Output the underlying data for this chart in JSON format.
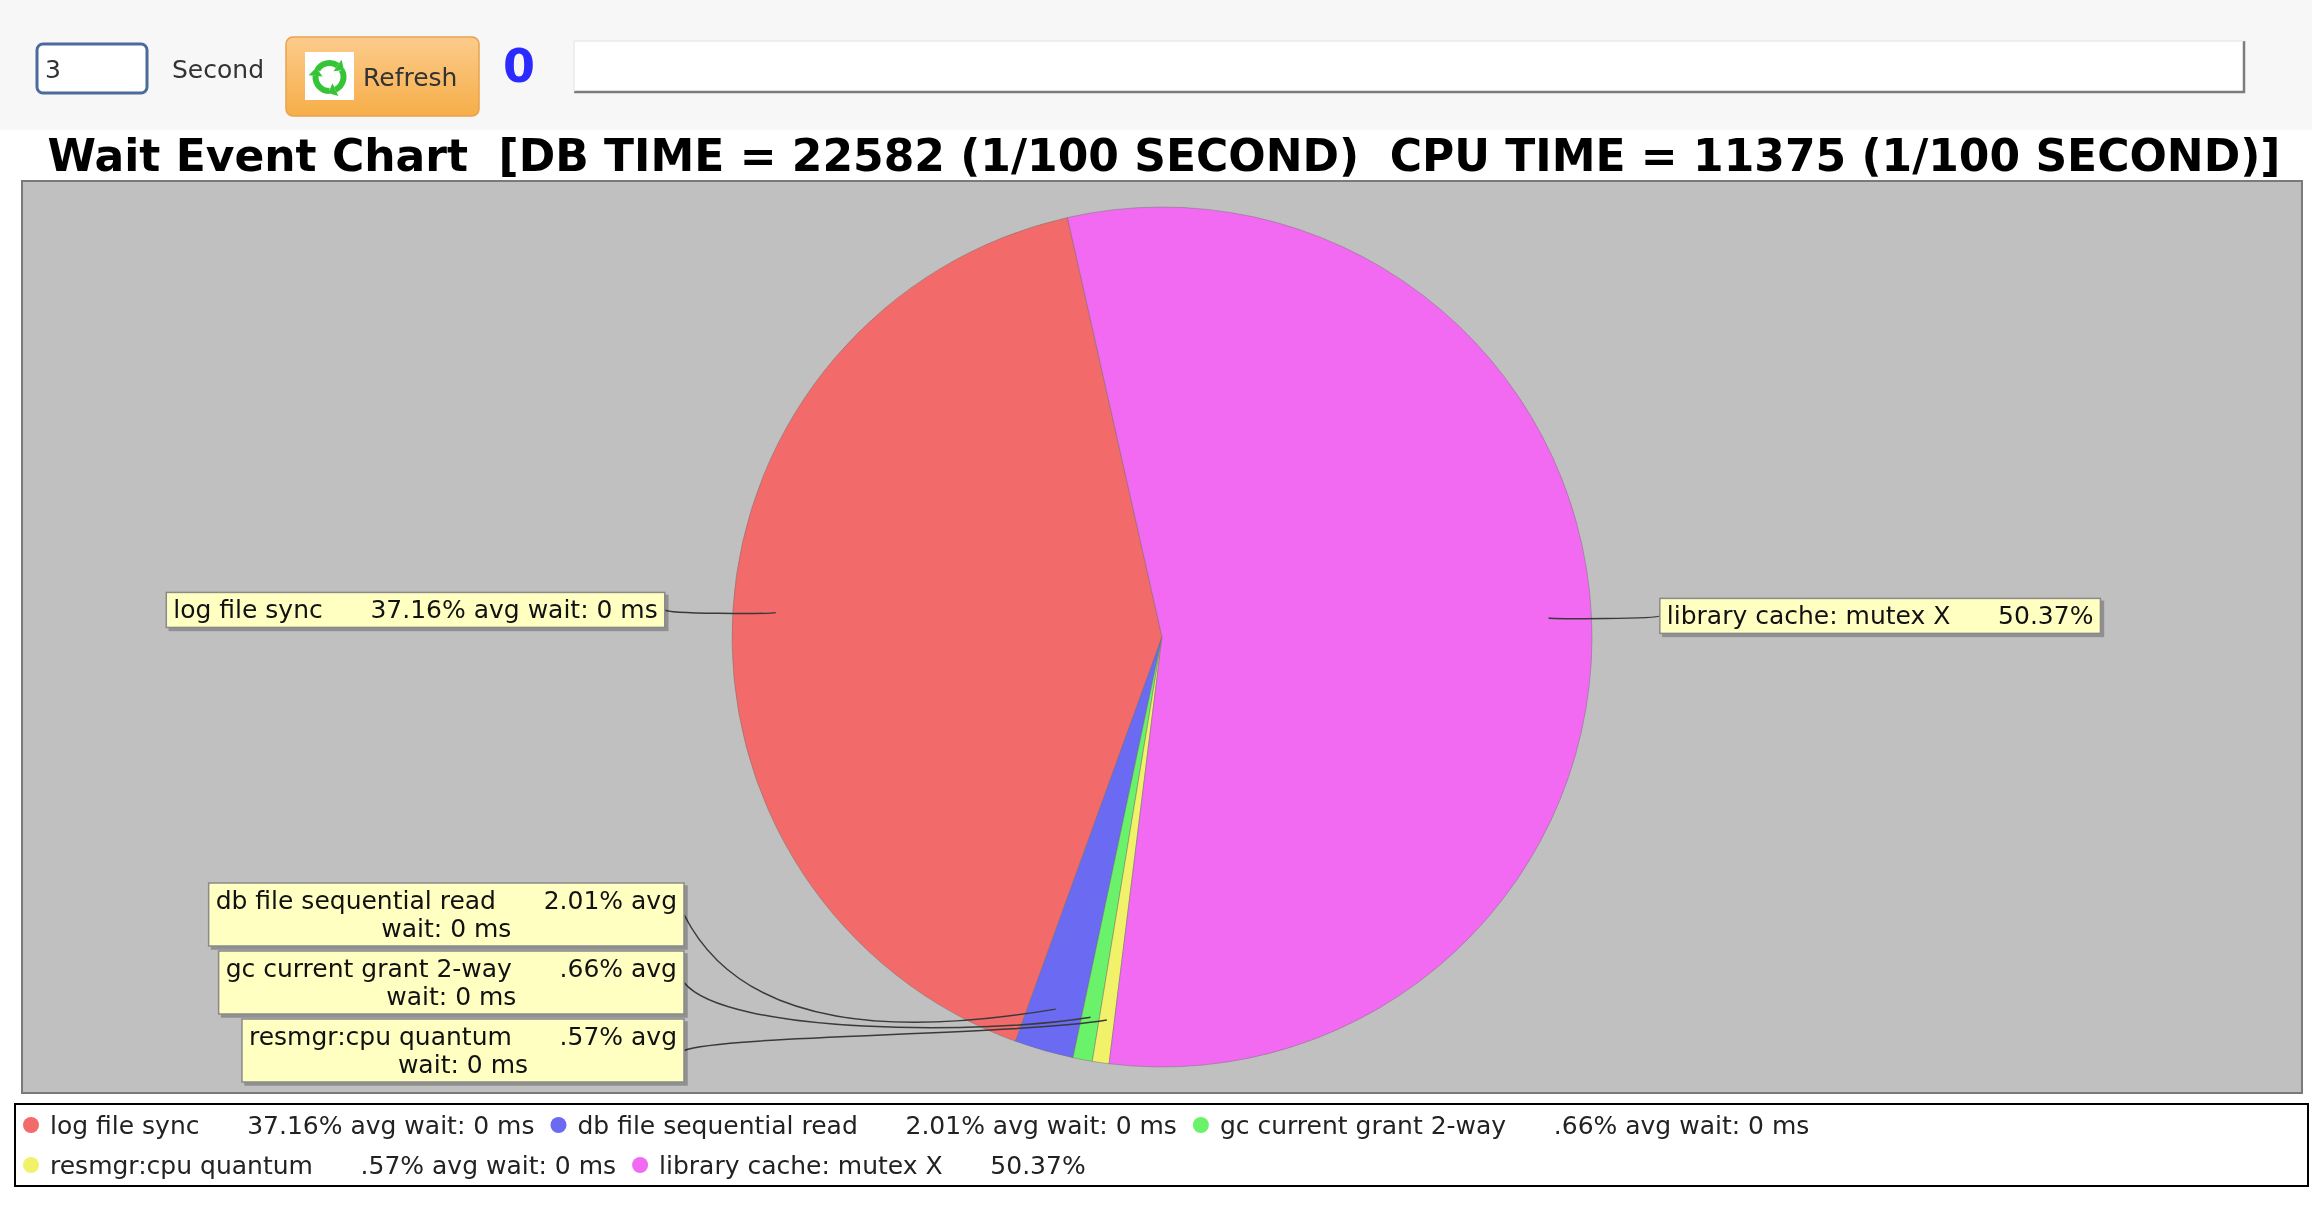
{
  "chart_data": {
    "type": "pie",
    "title": "Wait Event Chart  [DB TIME = 22582 (1/100 SECOND)  CPU TIME = 11375 (1/100 SECOND)]",
    "categories": [
      "log file sync",
      "db file sequential read",
      "gc current grant 2-way",
      "resmgr:cpu quantum",
      "library cache: mutex X"
    ],
    "values": [
      37.16,
      2.01,
      0.66,
      0.57,
      50.37
    ],
    "value_labels": [
      "37.16% avg wait: 0 ms",
      "2.01% avg wait: 0 ms",
      ".66% avg wait: 0 ms",
      ".57% avg wait: 0 ms",
      "50.37%"
    ],
    "colors": [
      "#f26a6a",
      "#6a6af2",
      "#6af26a",
      "#f2f26a",
      "#f26af2"
    ],
    "legend": "bottom",
    "annotations": [
      "3",
      "Second",
      "Refresh",
      "0"
    ]
  }
}
